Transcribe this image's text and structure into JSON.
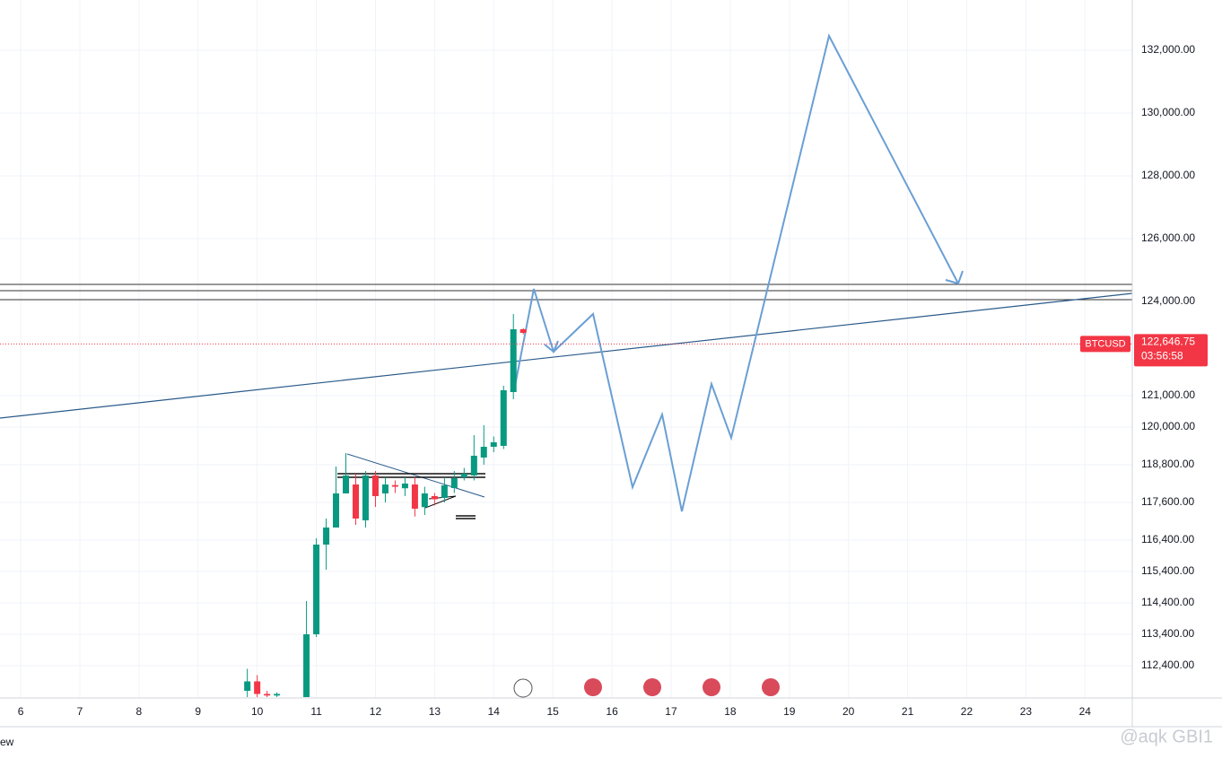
{
  "chart_data": {
    "type": "candlestick",
    "symbol": "BTCUSD",
    "x": [
      9.833,
      10.0,
      10.167,
      10.333,
      10.833,
      11.0,
      11.167,
      11.333,
      11.5,
      11.667,
      11.833,
      12.0,
      12.167,
      12.333,
      12.5,
      12.667,
      12.833,
      13.0,
      13.167,
      13.333,
      13.5,
      13.667,
      13.833,
      14.0,
      14.167,
      14.333,
      14.5
    ],
    "open": [
      111600,
      111900,
      111500,
      111450,
      111400,
      113400,
      116257,
      116800,
      117886,
      118171,
      117030,
      118457,
      117886,
      118150,
      118050,
      118171,
      117450,
      117800,
      117743,
      118057,
      118400,
      118457,
      119029,
      119371,
      119400,
      121114,
      123114
    ],
    "high": [
      112300,
      112100,
      111600,
      111550,
      114460,
      116457,
      117086,
      118743,
      119171,
      118514,
      118600,
      118600,
      118400,
      118300,
      118400,
      118400,
      118100,
      117900,
      118400,
      118600,
      118700,
      119743,
      120057,
      119700,
      121314,
      123600,
      123150
    ],
    "low": [
      111400,
      111400,
      111400,
      111400,
      111400,
      113314,
      115457,
      116886,
      118000,
      116886,
      116800,
      117457,
      117600,
      117900,
      117800,
      117150,
      117200,
      117500,
      117600,
      117900,
      118300,
      118300,
      118800,
      119200,
      119300,
      120886,
      122950
    ],
    "close": [
      111900,
      111500,
      111450,
      111500,
      113400,
      116257,
      116800,
      117886,
      118457,
      117086,
      118457,
      117800,
      118171,
      118100,
      118200,
      117400,
      117886,
      117700,
      118143,
      118371,
      118514,
      119086,
      119371,
      119514,
      121171,
      123114,
      123000
    ],
    "up_color": "#089981",
    "down_color": "#f23645",
    "xlim": [
      5.65,
      24.8
    ],
    "xticks": [
      6,
      7,
      8,
      9,
      10,
      11,
      12,
      13,
      14,
      15,
      16,
      17,
      18,
      19,
      20,
      21,
      22,
      23,
      24
    ],
    "ylim": [
      111371,
      133600
    ],
    "yticks": [
      {
        "value": 132000,
        "label": "132,000.00"
      },
      {
        "value": 130000,
        "label": "130,000.00"
      },
      {
        "value": 128000,
        "label": "128,000.00"
      },
      {
        "value": 126000,
        "label": "126,000.00"
      },
      {
        "value": 124000,
        "label": "124,000.00"
      },
      {
        "value": 121000,
        "label": "121,000.00"
      },
      {
        "value": 120000,
        "label": "120,000.00"
      },
      {
        "value": 118800,
        "label": "118,800.00"
      },
      {
        "value": 117600,
        "label": "117,600.00"
      },
      {
        "value": 116400,
        "label": "116,400.00"
      },
      {
        "value": 115400,
        "label": "115,400.00"
      },
      {
        "value": 114400,
        "label": "114,400.00"
      },
      {
        "value": 113400,
        "label": "113,400.00"
      },
      {
        "value": 112400,
        "label": "112,400.00"
      }
    ],
    "grid": true,
    "last_price": {
      "value": 122646.75,
      "label": "122,646.75"
    },
    "countdown": "03:56:58"
  },
  "footer": {
    "left": "ew",
    "watermark": "@aqk GBI1"
  }
}
